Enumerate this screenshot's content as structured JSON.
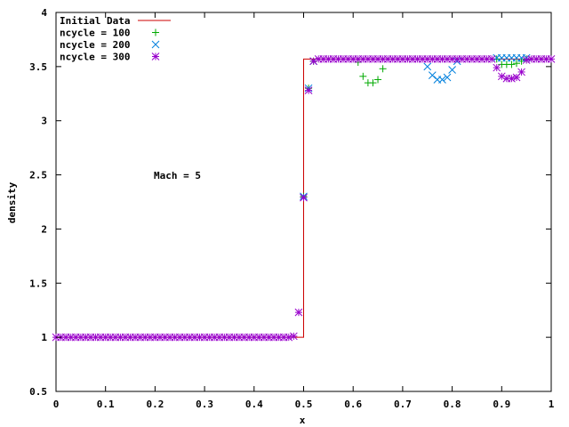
{
  "chart_data": {
    "type": "scatter",
    "title": "",
    "xlabel": "x",
    "ylabel": "density",
    "xlim": [
      0,
      1
    ],
    "ylim": [
      0.5,
      4
    ],
    "x_ticks": [
      {
        "value": 0,
        "label": "0"
      },
      {
        "value": 0.1,
        "label": "0.1"
      },
      {
        "value": 0.2,
        "label": "0.2"
      },
      {
        "value": 0.3,
        "label": "0.3"
      },
      {
        "value": 0.4,
        "label": "0.4"
      },
      {
        "value": 0.5,
        "label": "0.5"
      },
      {
        "value": 0.6,
        "label": "0.6"
      },
      {
        "value": 0.7,
        "label": "0.7"
      },
      {
        "value": 0.8,
        "label": "0.8"
      },
      {
        "value": 0.9,
        "label": "0.9"
      },
      {
        "value": 1,
        "label": "1"
      }
    ],
    "y_ticks": [
      {
        "value": 0.5,
        "label": "0.5"
      },
      {
        "value": 1,
        "label": "1"
      },
      {
        "value": 1.5,
        "label": "1.5"
      },
      {
        "value": 2,
        "label": "2"
      },
      {
        "value": 2.5,
        "label": "2.5"
      },
      {
        "value": 3,
        "label": "3"
      },
      {
        "value": 3.5,
        "label": "3.5"
      },
      {
        "value": 4,
        "label": "4"
      }
    ],
    "grid": false,
    "legend_position": "top-left",
    "annotation": {
      "text": "Mach = 5",
      "x": 0.2,
      "y": 2.48
    },
    "series": [
      {
        "name": "Initial Data",
        "style": "line",
        "color": "#cc0000",
        "points": [
          [
            0,
            1.0
          ],
          [
            0.5,
            1.0
          ],
          [
            0.5,
            3.57
          ],
          [
            1,
            3.57
          ]
        ]
      },
      {
        "name": "ncycle = 100",
        "style": "plus",
        "color": "#00aa00",
        "points": [
          [
            0.5,
            2.3
          ],
          [
            0.51,
            3.3
          ],
          [
            0.52,
            3.55
          ],
          [
            0.61,
            3.54
          ],
          [
            0.62,
            3.41
          ],
          [
            0.63,
            3.35
          ],
          [
            0.64,
            3.35
          ],
          [
            0.65,
            3.38
          ],
          [
            0.66,
            3.48
          ],
          [
            0.89,
            3.57
          ],
          [
            0.9,
            3.52
          ],
          [
            0.91,
            3.52
          ],
          [
            0.92,
            3.52
          ],
          [
            0.93,
            3.53
          ],
          [
            0.94,
            3.55
          ],
          [
            0.95,
            3.57
          ]
        ]
      },
      {
        "name": "ncycle = 200",
        "style": "cross",
        "color": "#0080dd",
        "points": [
          [
            0.5,
            2.3
          ],
          [
            0.51,
            3.3
          ],
          [
            0.52,
            3.55
          ],
          [
            0.75,
            3.5
          ],
          [
            0.76,
            3.42
          ],
          [
            0.77,
            3.38
          ],
          [
            0.78,
            3.38
          ],
          [
            0.79,
            3.4
          ],
          [
            0.8,
            3.47
          ],
          [
            0.81,
            3.55
          ],
          [
            0.89,
            3.58
          ],
          [
            0.9,
            3.58
          ],
          [
            0.91,
            3.58
          ],
          [
            0.92,
            3.58
          ],
          [
            0.93,
            3.58
          ],
          [
            0.94,
            3.58
          ],
          [
            0.95,
            3.58
          ]
        ]
      },
      {
        "name": "ncycle = 300",
        "style": "star",
        "color": "#9900cc",
        "points": [
          [
            0,
            1.0
          ],
          [
            0.01,
            1.0
          ],
          [
            0.02,
            1.0
          ],
          [
            0.03,
            1.0
          ],
          [
            0.04,
            1.0
          ],
          [
            0.05,
            1.0
          ],
          [
            0.06,
            1.0
          ],
          [
            0.07,
            1.0
          ],
          [
            0.08,
            1.0
          ],
          [
            0.09,
            1.0
          ],
          [
            0.1,
            1.0
          ],
          [
            0.11,
            1.0
          ],
          [
            0.12,
            1.0
          ],
          [
            0.13,
            1.0
          ],
          [
            0.14,
            1.0
          ],
          [
            0.15,
            1.0
          ],
          [
            0.16,
            1.0
          ],
          [
            0.17,
            1.0
          ],
          [
            0.18,
            1.0
          ],
          [
            0.19,
            1.0
          ],
          [
            0.2,
            1.0
          ],
          [
            0.21,
            1.0
          ],
          [
            0.22,
            1.0
          ],
          [
            0.23,
            1.0
          ],
          [
            0.24,
            1.0
          ],
          [
            0.25,
            1.0
          ],
          [
            0.26,
            1.0
          ],
          [
            0.27,
            1.0
          ],
          [
            0.28,
            1.0
          ],
          [
            0.29,
            1.0
          ],
          [
            0.3,
            1.0
          ],
          [
            0.31,
            1.0
          ],
          [
            0.32,
            1.0
          ],
          [
            0.33,
            1.0
          ],
          [
            0.34,
            1.0
          ],
          [
            0.35,
            1.0
          ],
          [
            0.36,
            1.0
          ],
          [
            0.37,
            1.0
          ],
          [
            0.38,
            1.0
          ],
          [
            0.39,
            1.0
          ],
          [
            0.4,
            1.0
          ],
          [
            0.41,
            1.0
          ],
          [
            0.42,
            1.0
          ],
          [
            0.43,
            1.0
          ],
          [
            0.44,
            1.0
          ],
          [
            0.45,
            1.0
          ],
          [
            0.46,
            1.0
          ],
          [
            0.47,
            1.0
          ],
          [
            0.48,
            1.01
          ],
          [
            0.49,
            1.23
          ],
          [
            0.5,
            2.29
          ],
          [
            0.51,
            3.28
          ],
          [
            0.52,
            3.55
          ],
          [
            0.53,
            3.57
          ],
          [
            0.54,
            3.57
          ],
          [
            0.55,
            3.57
          ],
          [
            0.56,
            3.57
          ],
          [
            0.57,
            3.57
          ],
          [
            0.58,
            3.57
          ],
          [
            0.59,
            3.57
          ],
          [
            0.6,
            3.57
          ],
          [
            0.61,
            3.57
          ],
          [
            0.62,
            3.57
          ],
          [
            0.63,
            3.57
          ],
          [
            0.64,
            3.57
          ],
          [
            0.65,
            3.57
          ],
          [
            0.66,
            3.57
          ],
          [
            0.67,
            3.57
          ],
          [
            0.68,
            3.57
          ],
          [
            0.69,
            3.57
          ],
          [
            0.7,
            3.57
          ],
          [
            0.71,
            3.57
          ],
          [
            0.72,
            3.57
          ],
          [
            0.73,
            3.57
          ],
          [
            0.74,
            3.57
          ],
          [
            0.75,
            3.57
          ],
          [
            0.76,
            3.57
          ],
          [
            0.77,
            3.57
          ],
          [
            0.78,
            3.57
          ],
          [
            0.79,
            3.57
          ],
          [
            0.8,
            3.57
          ],
          [
            0.81,
            3.57
          ],
          [
            0.82,
            3.57
          ],
          [
            0.83,
            3.57
          ],
          [
            0.84,
            3.57
          ],
          [
            0.85,
            3.57
          ],
          [
            0.86,
            3.57
          ],
          [
            0.87,
            3.57
          ],
          [
            0.88,
            3.57
          ],
          [
            0.89,
            3.49
          ],
          [
            0.9,
            3.41
          ],
          [
            0.91,
            3.39
          ],
          [
            0.92,
            3.39
          ],
          [
            0.93,
            3.4
          ],
          [
            0.94,
            3.45
          ],
          [
            0.95,
            3.56
          ],
          [
            0.96,
            3.57
          ],
          [
            0.97,
            3.57
          ],
          [
            0.98,
            3.57
          ],
          [
            0.99,
            3.57
          ],
          [
            1.0,
            3.57
          ]
        ]
      }
    ]
  }
}
